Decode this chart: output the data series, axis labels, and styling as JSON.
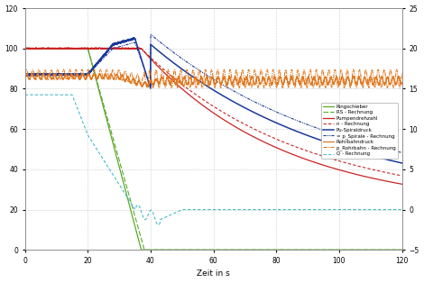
{
  "title": "",
  "xlabel": "Zeit in s",
  "xlim": [
    0,
    120
  ],
  "ylim_left": [
    0,
    120
  ],
  "ylim_right": [
    -5,
    25
  ],
  "xticks": [
    0,
    20,
    40,
    60,
    80,
    100,
    120
  ],
  "yticks_left": [
    0,
    20,
    40,
    60,
    80,
    100,
    120
  ],
  "yticks_right": [
    -5,
    0,
    5,
    10,
    15,
    20,
    25
  ],
  "legend_labels": [
    "Ringschieber",
    "RS - Rechnung",
    "Pumpendrehzahl",
    "n - Rechnung",
    "Pu-Spiraldruck",
    "= p_Spirale - Rechnung",
    "Rohrbahndruck",
    "p_Rohrbahn - Rechnung",
    "Q - Rechnung"
  ],
  "colors": {
    "ringschieber": "#5aaa28",
    "rs_rechnung": "#5aaa28",
    "pumpendrehzahl": "#cc2222",
    "n_rechnung": "#cc2222",
    "pu_spiraldruck": "#1a3a9a",
    "p_spirale_rechnung": "#1a3a9a",
    "rohrbahndruck": "#e07820",
    "p_rohrbahn_rechnung": "#e07820",
    "q_rechnung": "#44bbcc"
  },
  "fig_bg": "#ffffff",
  "ax_bg": "#ffffff",
  "grid_color": "#cccccc"
}
